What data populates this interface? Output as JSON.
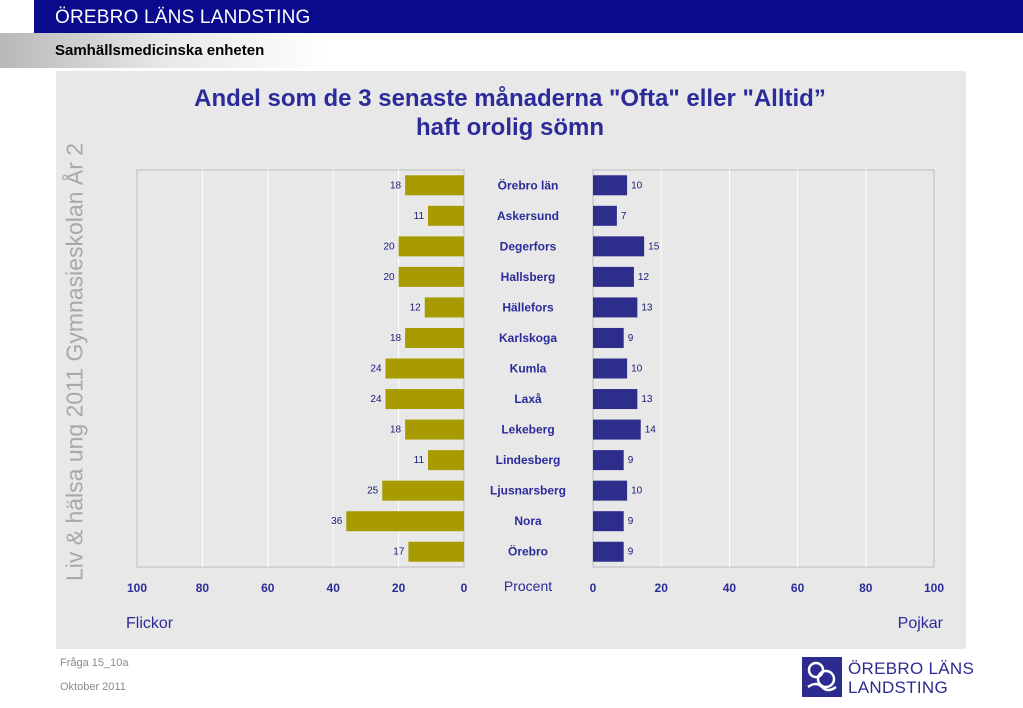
{
  "header": {
    "title": "ÖREBRO LÄNS LANDSTING",
    "subtitle": "Samhällsmedicinska enheten"
  },
  "side_text": "Liv & hälsa ung 2011 Gymnasieskolan År 2",
  "footer": {
    "question": "Fråga 15_10a",
    "date": "Oktober 2011"
  },
  "logo": {
    "line1": "ÖREBRO LÄNS",
    "line2": "LANDSTING",
    "icon": "landsting-logo-icon"
  },
  "colors": {
    "girls": "#a89b00",
    "boys": "#2d2d8c",
    "title": "#2b2b9a",
    "header": "#0a0a8c",
    "panel": "#e8e8e8"
  },
  "chart_data": {
    "type": "bar",
    "orientation": "horizontal-butterfly",
    "title": "Andel som de 3 senaste månaderna \"Ofta\" eller \"Alltid” haft orolig sömn",
    "title_lines": [
      "Andel som de 3 senaste månaderna \"Ofta\" eller \"Alltid”",
      "haft orolig sömn"
    ],
    "xlabel": "Procent",
    "left_label": "Flickor",
    "right_label": "Pojkar",
    "xlim": [
      0,
      100
    ],
    "left_ticks": [
      "100",
      "80",
      "60",
      "40",
      "20",
      "0"
    ],
    "right_ticks": [
      "0",
      "20",
      "40",
      "60",
      "80",
      "100"
    ],
    "grid": true,
    "categories": [
      "Örebro län",
      "Askersund",
      "Degerfors",
      "Hallsberg",
      "Hällefors",
      "Karlskoga",
      "Kumla",
      "Laxå",
      "Lekeberg",
      "Lindesberg",
      "Ljusnarsberg",
      "Nora",
      "Örebro"
    ],
    "series": [
      {
        "name": "Flickor",
        "values": [
          18,
          11,
          20,
          20,
          12,
          18,
          24,
          24,
          18,
          11,
          25,
          36,
          17
        ]
      },
      {
        "name": "Pojkar",
        "values": [
          10,
          7,
          15,
          12,
          13,
          9,
          10,
          13,
          14,
          9,
          10,
          9,
          9
        ]
      }
    ]
  }
}
